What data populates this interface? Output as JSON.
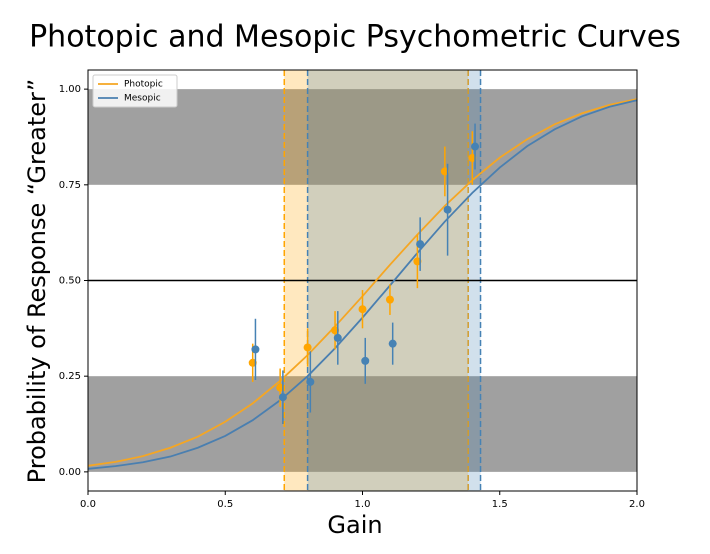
{
  "chart_data": {
    "type": "line",
    "title": "Photopic and Mesopic Psychometric Curves",
    "xlabel": "Gain",
    "ylabel": "Probability of Response “Greater”",
    "xlim": [
      0,
      2
    ],
    "ylim": [
      -0.05,
      1.05
    ],
    "xticks": [
      {
        "value": 0,
        "label": "0.0"
      },
      {
        "value": 0.5,
        "label": "0.5"
      },
      {
        "value": 1,
        "label": "1.0"
      },
      {
        "value": 1.5,
        "label": "1.5"
      },
      {
        "value": 2,
        "label": "2.0"
      }
    ],
    "yticks": [
      {
        "value": 0,
        "label": "0.00"
      },
      {
        "value": 0.25,
        "label": "0.25"
      },
      {
        "value": 0.5,
        "label": "0.50"
      },
      {
        "value": 0.75,
        "label": "0.75"
      },
      {
        "value": 1,
        "label": "1.00"
      }
    ],
    "legend": "upper left",
    "shaded_y": [
      [
        0,
        0.25
      ],
      [
        0.75,
        1
      ]
    ],
    "shade_color": "#a0a0a0",
    "hline": 0.5,
    "spans": [
      {
        "color": "#ffa500",
        "xlim": [
          0.715,
          1.385
        ]
      },
      {
        "color": "#4682b4",
        "xlim": [
          0.8,
          1.43
        ]
      }
    ],
    "series": [
      {
        "name": "Photopic",
        "color": "#f5a623",
        "x": [
          0,
          0.1,
          0.2,
          0.3,
          0.4,
          0.5,
          0.6,
          0.7,
          0.8,
          0.9,
          1.0,
          1.1,
          1.2,
          1.3,
          1.4,
          1.5,
          1.6,
          1.7,
          1.8,
          1.9,
          2.0
        ],
        "values": [
          0.016,
          0.026,
          0.041,
          0.063,
          0.092,
          0.131,
          0.179,
          0.238,
          0.305,
          0.38,
          0.459,
          0.541,
          0.62,
          0.695,
          0.762,
          0.821,
          0.869,
          0.908,
          0.937,
          0.959,
          0.974
        ]
      },
      {
        "name": "Mesopic",
        "color": "#4a7fb0",
        "x": [
          0,
          0.1,
          0.2,
          0.3,
          0.4,
          0.5,
          0.6,
          0.7,
          0.8,
          0.9,
          1.0,
          1.1,
          1.2,
          1.3,
          1.4,
          1.5,
          1.6,
          1.7,
          1.8,
          1.9,
          2.0
        ],
        "values": [
          0.008,
          0.015,
          0.025,
          0.04,
          0.063,
          0.094,
          0.135,
          0.187,
          0.25,
          0.323,
          0.403,
          0.487,
          0.572,
          0.654,
          0.729,
          0.795,
          0.851,
          0.895,
          0.929,
          0.954,
          0.971
        ]
      }
    ],
    "points": [
      {
        "color": "#ffa500",
        "x": [
          0.6,
          0.7,
          0.8,
          0.9,
          1.0,
          1.1,
          1.2,
          1.3,
          1.4
        ],
        "values": [
          0.285,
          0.22,
          0.325,
          0.37,
          0.425,
          0.45,
          0.55,
          0.785,
          0.82
        ],
        "errors": [
          0.05,
          0.05,
          0.05,
          0.05,
          0.05,
          0.04,
          0.07,
          0.065,
          0.07
        ]
      },
      {
        "color": "#4682b4",
        "x": [
          0.61,
          0.71,
          0.81,
          0.91,
          1.01,
          1.11,
          1.21,
          1.31,
          1.41
        ],
        "values": [
          0.32,
          0.195,
          0.235,
          0.35,
          0.29,
          0.335,
          0.595,
          0.685,
          0.85
        ],
        "errors": [
          0.08,
          0.07,
          0.08,
          0.07,
          0.06,
          0.055,
          0.07,
          0.12,
          0.06
        ]
      }
    ]
  }
}
